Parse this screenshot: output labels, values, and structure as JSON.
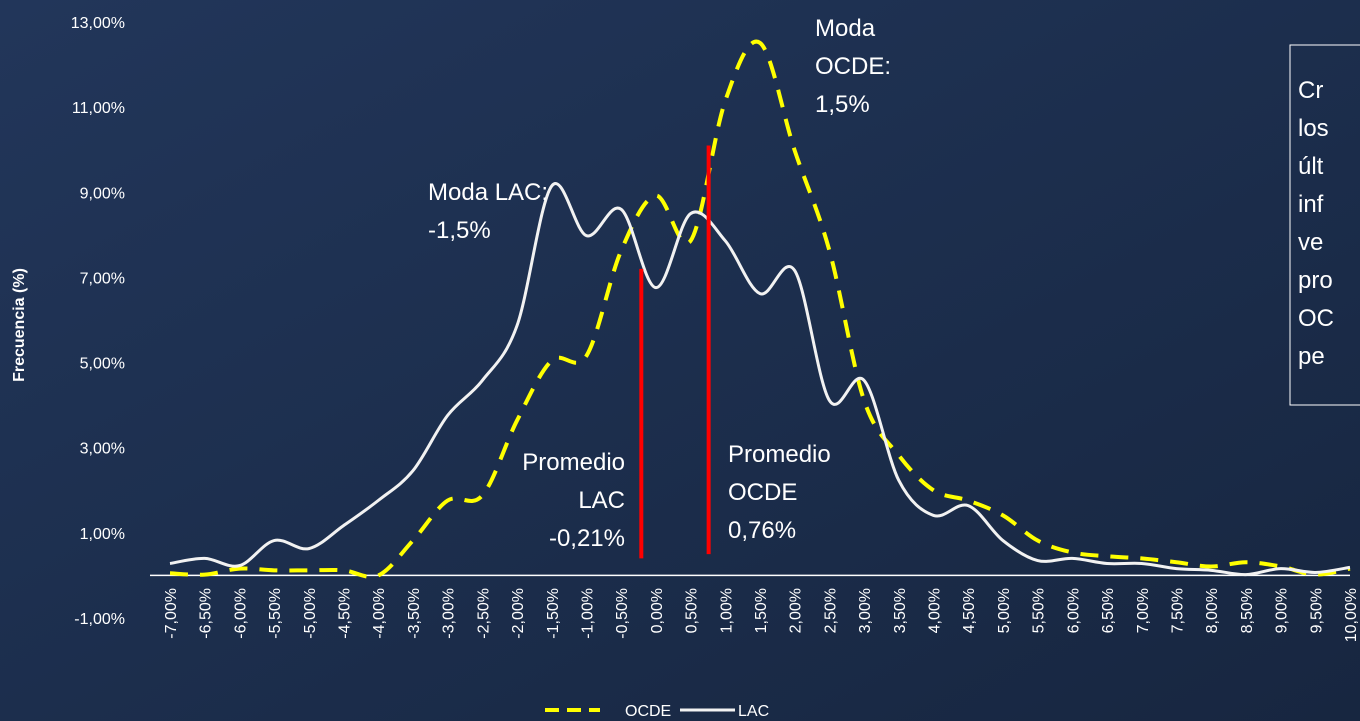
{
  "chart_data": {
    "type": "line",
    "y_label": "Frecuencia (%)",
    "x": [
      -7,
      -6.5,
      -6,
      -5.5,
      -5,
      -4.5,
      -4,
      -3.5,
      -3,
      -2.5,
      -2,
      -1.5,
      -1,
      -0.5,
      0,
      0.5,
      1,
      1.5,
      2,
      2.5,
      3,
      3.5,
      4,
      4.5,
      5,
      5.5,
      6,
      6.5,
      7,
      7.5,
      8,
      8.5,
      9,
      9.5,
      10
    ],
    "xlim": [
      -7,
      10
    ],
    "xticks": [
      {
        "value": -7,
        "label": "-7,00%"
      },
      {
        "value": -6.5,
        "label": "-6,50%"
      },
      {
        "value": -6,
        "label": "-6,00%"
      },
      {
        "value": -5.5,
        "label": "-5,50%"
      },
      {
        "value": -5,
        "label": "-5,00%"
      },
      {
        "value": -4.5,
        "label": "-4,50%"
      },
      {
        "value": -4,
        "label": "-4,00%"
      },
      {
        "value": -3.5,
        "label": "-3,50%"
      },
      {
        "value": -3,
        "label": "-3,00%"
      },
      {
        "value": -2.5,
        "label": "-2,50%"
      },
      {
        "value": -2,
        "label": "-2,00%"
      },
      {
        "value": -1.5,
        "label": "-1,50%"
      },
      {
        "value": -1,
        "label": "-1,00%"
      },
      {
        "value": -0.5,
        "label": "-0,50%"
      },
      {
        "value": 0,
        "label": "0,00%"
      },
      {
        "value": 0.5,
        "label": "0,50%"
      },
      {
        "value": 1,
        "label": "1,00%"
      },
      {
        "value": 1.5,
        "label": "1,50%"
      },
      {
        "value": 2,
        "label": "2,00%"
      },
      {
        "value": 2.5,
        "label": "2,50%"
      },
      {
        "value": 3,
        "label": "3,00%"
      },
      {
        "value": 3.5,
        "label": "3,50%"
      },
      {
        "value": 4,
        "label": "4,00%"
      },
      {
        "value": 4.5,
        "label": "4,50%"
      },
      {
        "value": 5,
        "label": "5,00%"
      },
      {
        "value": 5.5,
        "label": "5,50%"
      },
      {
        "value": 6,
        "label": "6,00%"
      },
      {
        "value": 6.5,
        "label": "6,50%"
      },
      {
        "value": 7,
        "label": "7,00%"
      },
      {
        "value": 7.5,
        "label": "7,50%"
      },
      {
        "value": 8,
        "label": "8,00%"
      },
      {
        "value": 8.5,
        "label": "8,50%"
      },
      {
        "value": 9,
        "label": "9,00%"
      },
      {
        "value": 9.5,
        "label": "9,50%"
      },
      {
        "value": 10,
        "label": "10,00%"
      }
    ],
    "ylim": [
      -1,
      13
    ],
    "yticks": [
      {
        "value": -1,
        "label": "-1,00%"
      },
      {
        "value": 1,
        "label": "1,00%"
      },
      {
        "value": 3,
        "label": "3,00%"
      },
      {
        "value": 5,
        "label": "5,00%"
      },
      {
        "value": 7,
        "label": "7,00%"
      },
      {
        "value": 9,
        "label": "9,00%"
      },
      {
        "value": 11,
        "label": "11,00%"
      },
      {
        "value": 13,
        "label": "13,00%"
      }
    ],
    "series": [
      {
        "name": "OCDE",
        "color": "#ffff00",
        "dashed": true,
        "values": [
          0.05,
          0.02,
          0.16,
          0.12,
          0.12,
          0.12,
          0,
          0.82,
          1.76,
          1.88,
          3.64,
          5.05,
          5.16,
          7.63,
          8.92,
          7.86,
          11.15,
          12.51,
          9.98,
          7.63,
          4.11,
          2.82,
          2.0,
          1.76,
          1.41,
          0.82,
          0.54,
          0.45,
          0.4,
          0.31,
          0.21,
          0.31,
          0.21,
          0.02,
          0.16
        ]
      },
      {
        "name": "LAC",
        "color": "#f2f2f2",
        "dashed": false,
        "values": [
          0.28,
          0.4,
          0.23,
          0.82,
          0.63,
          1.17,
          1.76,
          2.46,
          3.76,
          4.58,
          5.87,
          9.15,
          7.98,
          8.6,
          6.76,
          8.5,
          7.86,
          6.62,
          7.16,
          4.11,
          4.58,
          2.23,
          1.41,
          1.64,
          0.82,
          0.35,
          0.4,
          0.28,
          0.28,
          0.16,
          0.12,
          0.02,
          0.16,
          0.07,
          0.19
        ]
      }
    ],
    "mean_lines": [
      {
        "x": -0.21,
        "y_range": [
          0.4,
          7.2
        ],
        "color": "#ff0000",
        "text": [
          "Promedio",
          "LAC",
          "-0,21%"
        ]
      },
      {
        "x": 0.76,
        "y_range": [
          0.5,
          10.1
        ],
        "color": "#ff0000",
        "text": [
          "Promedio",
          "OCDE",
          "0,76%"
        ]
      }
    ],
    "annotations": [
      {
        "text": [
          "Moda LAC:",
          "-1,5%"
        ]
      },
      {
        "text": [
          "Moda",
          "OCDE:",
          "1,5%"
        ]
      }
    ],
    "side_box": [
      "Cr",
      "los",
      "últ",
      "inf",
      "ve",
      "pro",
      "OC",
      "pe"
    ]
  }
}
